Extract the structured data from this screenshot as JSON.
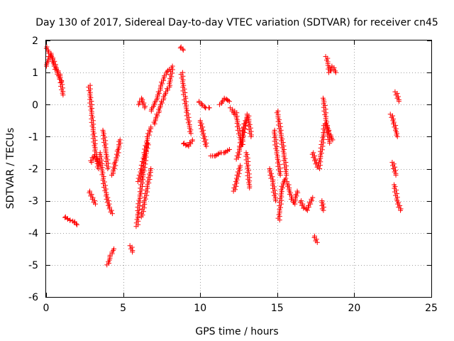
{
  "colors": {
    "marker": "#ff0000",
    "grid": "#a0a0a0",
    "axis": "#000000",
    "background": "#ffffff"
  },
  "chart_data": {
    "type": "scatter",
    "title": "Day 130 of 2017, Sidereal Day-to-day VTEC variation (SDTVAR) for receiver cn45",
    "xlabel": "GPS time / hours",
    "ylabel": "SDTVAR / TECUs",
    "xlim": [
      0,
      25
    ],
    "ylim": [
      -6,
      2
    ],
    "xticks": [
      0,
      5,
      10,
      15,
      20,
      25
    ],
    "yticks": [
      -6,
      -5,
      -4,
      -3,
      -2,
      -1,
      0,
      1,
      2
    ],
    "grid": true,
    "marker": "+",
    "series": [
      {
        "name": "SDTVAR",
        "segments": [
          {
            "x": [
              0.0,
              0.3,
              0.6,
              0.9,
              1.1
            ],
            "y": [
              1.2,
              1.6,
              1.2,
              0.9,
              0.3
            ]
          },
          {
            "x": [
              0.0,
              0.4,
              0.7,
              1.0
            ],
            "y": [
              1.8,
              1.4,
              1.0,
              0.7
            ]
          },
          {
            "x": [
              1.2,
              1.5,
              1.8,
              2.0
            ],
            "y": [
              -3.5,
              -3.6,
              -3.65,
              -3.75
            ]
          },
          {
            "x": [
              2.8,
              3.0,
              3.2,
              3.4
            ],
            "y": [
              0.6,
              -0.5,
              -1.5,
              -2.0
            ]
          },
          {
            "x": [
              2.9,
              3.1,
              3.3,
              3.5
            ],
            "y": [
              -1.8,
              -1.6,
              -1.7,
              -1.9
            ]
          },
          {
            "x": [
              2.8,
              3.0,
              3.2
            ],
            "y": [
              -2.7,
              -2.9,
              -3.1
            ]
          },
          {
            "x": [
              3.5,
              3.7,
              3.9,
              4.1,
              4.3
            ],
            "y": [
              -1.5,
              -2.3,
              -2.8,
              -3.2,
              -3.4
            ]
          },
          {
            "x": [
              3.7,
              3.9,
              4.0
            ],
            "y": [
              -0.8,
              -1.5,
              -2.0
            ]
          },
          {
            "x": [
              4.3,
              4.5,
              4.7,
              4.8
            ],
            "y": [
              -2.2,
              -1.8,
              -1.4,
              -1.1
            ]
          },
          {
            "x": [
              4.0,
              4.2,
              4.4
            ],
            "y": [
              -5.0,
              -4.7,
              -4.5
            ]
          },
          {
            "x": [
              5.5,
              5.6
            ],
            "y": [
              -4.4,
              -4.6
            ]
          },
          {
            "x": [
              5.9,
              6.0,
              6.2,
              6.4,
              6.6
            ],
            "y": [
              -3.8,
              -3.2,
              -2.5,
              -1.8,
              -1.2
            ]
          },
          {
            "x": [
              6.0,
              6.2,
              6.4,
              6.6,
              6.8
            ],
            "y": [
              -2.4,
              -2.0,
              -1.5,
              -1.0,
              -0.7
            ]
          },
          {
            "x": [
              6.2,
              6.4,
              6.6,
              6.8
            ],
            "y": [
              -3.5,
              -3.0,
              -2.5,
              -2.0
            ]
          },
          {
            "x": [
              6.0,
              6.2,
              6.4
            ],
            "y": [
              0.0,
              0.2,
              -0.1
            ]
          },
          {
            "x": [
              6.8,
              7.0,
              7.2,
              7.4,
              7.6,
              7.8,
              8.0
            ],
            "y": [
              -0.2,
              0.0,
              0.2,
              0.5,
              0.8,
              1.0,
              1.1
            ]
          },
          {
            "x": [
              7.0,
              7.3,
              7.6,
              8.0,
              8.2
            ],
            "y": [
              -0.6,
              -0.2,
              0.2,
              0.6,
              1.2
            ]
          },
          {
            "x": [
              8.7,
              8.9
            ],
            "y": [
              1.8,
              1.7
            ]
          },
          {
            "x": [
              8.8,
              9.0,
              9.2,
              9.4
            ],
            "y": [
              1.0,
              0.2,
              -0.4,
              -0.9
            ]
          },
          {
            "x": [
              8.9,
              9.2,
              9.5
            ],
            "y": [
              -1.2,
              -1.3,
              -1.1
            ]
          },
          {
            "x": [
              9.9,
              10.1,
              10.3,
              10.6
            ],
            "y": [
              0.1,
              0.0,
              -0.1,
              -0.1
            ]
          },
          {
            "x": [
              10.0,
              10.2,
              10.4
            ],
            "y": [
              -0.5,
              -0.9,
              -1.3
            ]
          },
          {
            "x": [
              10.7,
              11.0,
              11.3,
              11.6,
              11.9
            ],
            "y": [
              -1.6,
              -1.6,
              -1.5,
              -1.5,
              -1.4
            ]
          },
          {
            "x": [
              11.3,
              11.6,
              11.9
            ],
            "y": [
              0.0,
              0.2,
              0.1
            ]
          },
          {
            "x": [
              12.0,
              12.2
            ],
            "y": [
              -0.1,
              -0.3
            ]
          },
          {
            "x": [
              12.3,
              12.5,
              12.7,
              12.9,
              13.1,
              13.3
            ],
            "y": [
              -0.2,
              -0.8,
              -1.3,
              -0.6,
              -0.3,
              -1.0
            ]
          },
          {
            "x": [
              12.4,
              12.6,
              12.8,
              13.0
            ],
            "y": [
              -1.7,
              -1.3,
              -0.8,
              -0.5
            ]
          },
          {
            "x": [
              12.2,
              12.4,
              12.6
            ],
            "y": [
              -2.7,
              -2.3,
              -1.9
            ]
          },
          {
            "x": [
              13.0,
              13.1,
              13.2
            ],
            "y": [
              -1.5,
              -2.0,
              -2.6
            ]
          },
          {
            "x": [
              14.5,
              14.7,
              14.9
            ],
            "y": [
              -2.0,
              -2.4,
              -3.0
            ]
          },
          {
            "x": [
              14.8,
              15.0,
              15.2
            ],
            "y": [
              -0.8,
              -1.6,
              -2.2
            ]
          },
          {
            "x": [
              15.0,
              15.2,
              15.4,
              15.6
            ],
            "y": [
              -0.2,
              -0.8,
              -1.4,
              -2.2
            ]
          },
          {
            "x": [
              15.1,
              15.3,
              15.5,
              15.7,
              15.9,
              16.1,
              16.3
            ],
            "y": [
              -3.6,
              -2.6,
              -2.3,
              -2.5,
              -2.9,
              -3.1,
              -2.7
            ]
          },
          {
            "x": [
              16.5,
              16.7,
              16.9,
              17.1,
              17.3
            ],
            "y": [
              -3.0,
              -3.2,
              -3.3,
              -3.1,
              -2.9
            ]
          },
          {
            "x": [
              17.3,
              17.5,
              17.7,
              17.9,
              18.1
            ],
            "y": [
              -1.5,
              -1.8,
              -2.0,
              -1.3,
              -0.6
            ]
          },
          {
            "x": [
              17.4,
              17.6
            ],
            "y": [
              -4.1,
              -4.3
            ]
          },
          {
            "x": [
              17.9,
              18.0
            ],
            "y": [
              -3.0,
              -3.3
            ]
          },
          {
            "x": [
              18.0,
              18.2,
              18.4
            ],
            "y": [
              0.2,
              -0.6,
              -1.2
            ]
          },
          {
            "x": [
              18.2,
              18.4,
              18.6
            ],
            "y": [
              -0.6,
              -0.9,
              -1.1
            ]
          },
          {
            "x": [
              18.2,
              18.4,
              18.6,
              18.8
            ],
            "y": [
              1.5,
              1.0,
              1.2,
              1.0
            ]
          },
          {
            "x": [
              22.4,
              22.6,
              22.8
            ],
            "y": [
              -0.3,
              -0.6,
              -1.0
            ]
          },
          {
            "x": [
              22.7,
              22.9
            ],
            "y": [
              0.4,
              0.1
            ]
          },
          {
            "x": [
              22.5,
              22.7
            ],
            "y": [
              -1.8,
              -2.2
            ]
          },
          {
            "x": [
              22.6,
              22.8,
              23.0
            ],
            "y": [
              -2.5,
              -3.0,
              -3.3
            ]
          }
        ]
      }
    ]
  }
}
